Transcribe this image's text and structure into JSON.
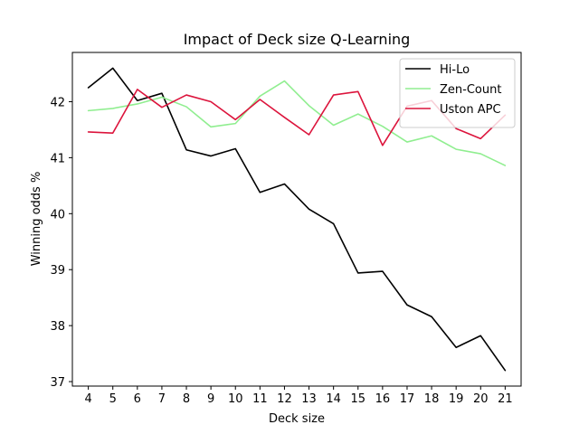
{
  "chart_data": {
    "type": "line",
    "title": "Impact of Deck size Q-Learning",
    "xlabel": "Deck size",
    "ylabel": "Winning odds %",
    "x": [
      4,
      5,
      6,
      7,
      8,
      9,
      10,
      11,
      12,
      13,
      14,
      15,
      16,
      17,
      18,
      19,
      20,
      21
    ],
    "xlim": [
      3.35,
      21.65
    ],
    "ylim": [
      36.92,
      42.88
    ],
    "yticks": [
      37,
      38,
      39,
      40,
      41,
      42
    ],
    "grid": false,
    "legend_position": "top-right",
    "series": [
      {
        "name": "Hi-Lo",
        "color": "#000000",
        "values": [
          42.25,
          42.6,
          42.02,
          42.15,
          41.14,
          41.03,
          41.16,
          40.38,
          40.53,
          40.08,
          39.82,
          38.94,
          38.97,
          38.37,
          38.16,
          37.61,
          37.82,
          37.2
        ]
      },
      {
        "name": "Zen-Count",
        "color": "#90ee90",
        "values": [
          41.84,
          41.88,
          41.96,
          42.08,
          41.91,
          41.55,
          41.61,
          42.1,
          42.37,
          41.93,
          41.58,
          41.78,
          41.56,
          41.28,
          41.39,
          41.15,
          41.07,
          40.86
        ]
      },
      {
        "name": "Uston APC",
        "color": "#dc143c",
        "values": [
          41.46,
          41.44,
          42.22,
          41.9,
          42.12,
          42.0,
          41.68,
          42.04,
          41.72,
          41.41,
          42.12,
          42.18,
          41.22,
          41.92,
          42.02,
          41.52,
          41.34,
          41.76
        ]
      }
    ]
  }
}
